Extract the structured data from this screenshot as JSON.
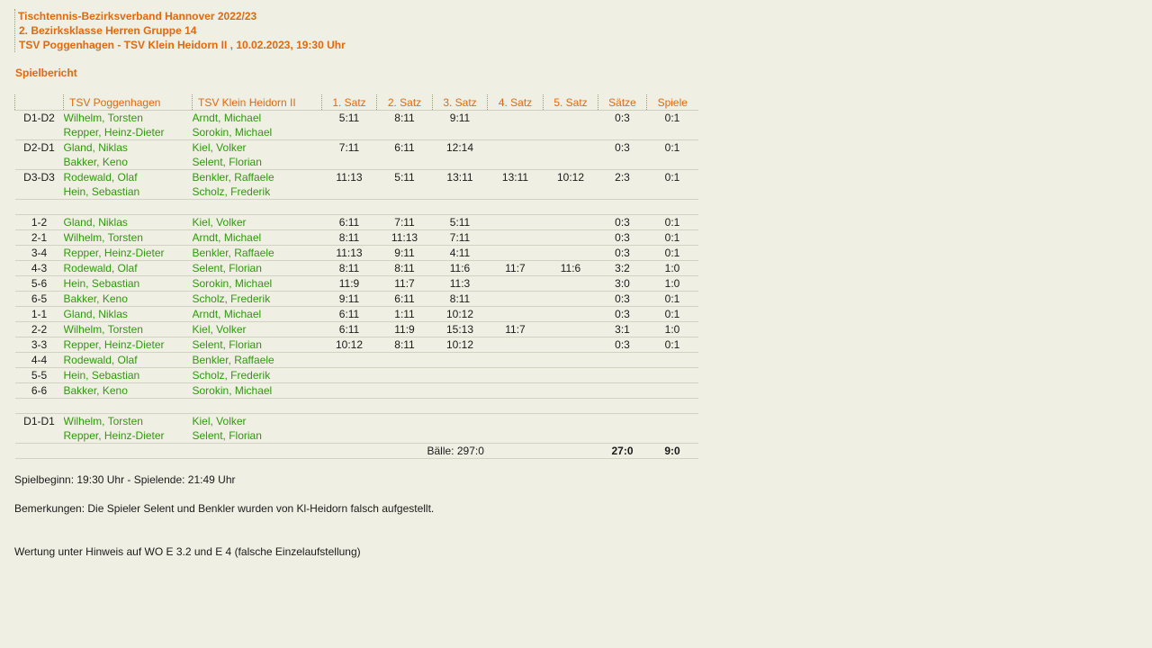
{
  "header": {
    "line1": "Tischtennis-Bezirksverband Hannover 2022/23",
    "line2": "2. Bezirksklasse Herren Gruppe 14",
    "line3": "TSV Poggenhagen - TSV Klein Heidorn II , 10.02.2023, 19:30 Uhr"
  },
  "report_label": "Spielbericht",
  "table": {
    "columns": [
      "",
      "TSV Poggenhagen",
      "TSV Klein Heidorn II",
      "1. Satz",
      "2. Satz",
      "3. Satz",
      "4. Satz",
      "5. Satz",
      "Sätze",
      "Spiele"
    ],
    "doubles_top": [
      {
        "pos": "D1-D2",
        "home1": "Wilhelm, Torsten",
        "home2": "Repper, Heinz-Dieter",
        "away1": "Arndt, Michael",
        "away2": "Sorokin, Michael",
        "s1": "5:11",
        "s2": "8:11",
        "s3": "9:11",
        "s4": "",
        "s5": "",
        "saetze": "0:3",
        "spiele": "0:1"
      },
      {
        "pos": "D2-D1",
        "home1": "Gland, Niklas",
        "home2": "Bakker, Keno",
        "away1": "Kiel, Volker",
        "away2": "Selent, Florian",
        "s1": "7:11",
        "s2": "6:11",
        "s3": "12:14",
        "s4": "",
        "s5": "",
        "saetze": "0:3",
        "spiele": "0:1"
      },
      {
        "pos": "D3-D3",
        "home1": "Rodewald, Olaf",
        "home2": "Hein, Sebastian",
        "away1": "Benkler, Raffaele",
        "away2": "Scholz, Frederik",
        "s1": "11:13",
        "s2": "5:11",
        "s3": "13:11",
        "s4": "13:11",
        "s5": "10:12",
        "saetze": "2:3",
        "spiele": "0:1"
      }
    ],
    "singles": [
      {
        "pos": "1-2",
        "home": "Gland, Niklas",
        "away": "Kiel, Volker",
        "s1": "6:11",
        "s2": "7:11",
        "s3": "5:11",
        "s4": "",
        "s5": "",
        "saetze": "0:3",
        "spiele": "0:1"
      },
      {
        "pos": "2-1",
        "home": "Wilhelm, Torsten",
        "away": "Arndt, Michael",
        "s1": "8:11",
        "s2": "11:13",
        "s3": "7:11",
        "s4": "",
        "s5": "",
        "saetze": "0:3",
        "spiele": "0:1"
      },
      {
        "pos": "3-4",
        "home": "Repper, Heinz-Dieter",
        "away": "Benkler, Raffaele",
        "s1": "11:13",
        "s2": "9:11",
        "s3": "4:11",
        "s4": "",
        "s5": "",
        "saetze": "0:3",
        "spiele": "0:1"
      },
      {
        "pos": "4-3",
        "home": "Rodewald, Olaf",
        "away": "Selent, Florian",
        "s1": "8:11",
        "s2": "8:11",
        "s3": "11:6",
        "s4": "11:7",
        "s5": "11:6",
        "saetze": "3:2",
        "spiele": "1:0"
      },
      {
        "pos": "5-6",
        "home": "Hein, Sebastian",
        "away": "Sorokin, Michael",
        "s1": "11:9",
        "s2": "11:7",
        "s3": "11:3",
        "s4": "",
        "s5": "",
        "saetze": "3:0",
        "spiele": "1:0"
      },
      {
        "pos": "6-5",
        "home": "Bakker, Keno",
        "away": "Scholz, Frederik",
        "s1": "9:11",
        "s2": "6:11",
        "s3": "8:11",
        "s4": "",
        "s5": "",
        "saetze": "0:3",
        "spiele": "0:1"
      },
      {
        "pos": "1-1",
        "home": "Gland, Niklas",
        "away": "Arndt, Michael",
        "s1": "6:11",
        "s2": "1:11",
        "s3": "10:12",
        "s4": "",
        "s5": "",
        "saetze": "0:3",
        "spiele": "0:1"
      },
      {
        "pos": "2-2",
        "home": "Wilhelm, Torsten",
        "away": "Kiel, Volker",
        "s1": "6:11",
        "s2": "11:9",
        "s3": "15:13",
        "s4": "11:7",
        "s5": "",
        "saetze": "3:1",
        "spiele": "1:0"
      },
      {
        "pos": "3-3",
        "home": "Repper, Heinz-Dieter",
        "away": "Selent, Florian",
        "s1": "10:12",
        "s2": "8:11",
        "s3": "10:12",
        "s4": "",
        "s5": "",
        "saetze": "0:3",
        "spiele": "0:1"
      },
      {
        "pos": "4-4",
        "home": "Rodewald, Olaf",
        "away": "Benkler, Raffaele",
        "s1": "",
        "s2": "",
        "s3": "",
        "s4": "",
        "s5": "",
        "saetze": "",
        "spiele": ""
      },
      {
        "pos": "5-5",
        "home": "Hein, Sebastian",
        "away": "Scholz, Frederik",
        "s1": "",
        "s2": "",
        "s3": "",
        "s4": "",
        "s5": "",
        "saetze": "",
        "spiele": ""
      },
      {
        "pos": "6-6",
        "home": "Bakker, Keno",
        "away": "Sorokin, Michael",
        "s1": "",
        "s2": "",
        "s3": "",
        "s4": "",
        "s5": "",
        "saetze": "",
        "spiele": ""
      }
    ],
    "doubles_final": [
      {
        "pos": "D1-D1",
        "home1": "Wilhelm, Torsten",
        "home2": "Repper, Heinz-Dieter",
        "away1": "Kiel, Volker",
        "away2": "Selent, Florian",
        "s1": "",
        "s2": "",
        "s3": "",
        "s4": "",
        "s5": "",
        "saetze": "",
        "spiele": ""
      }
    ],
    "totals": {
      "balls": "Bälle: 297:0",
      "saetze": "27:0",
      "spiele": "9:0"
    }
  },
  "footer": {
    "times": "Spielbeginn: 19:30 Uhr - Spielende: 21:49 Uhr",
    "remarks": "Bemerkungen: Die Spieler Selent und Benkler wurden von Kl-Heidorn falsch aufgestellt.",
    "rating": "Wertung unter Hinweis auf WO E 3.2 und E 4 (falsche Einzelaufstellung)"
  },
  "colors": {
    "accent": "#e06a10",
    "player": "#2e9a0c",
    "background": "#f0efe3"
  }
}
